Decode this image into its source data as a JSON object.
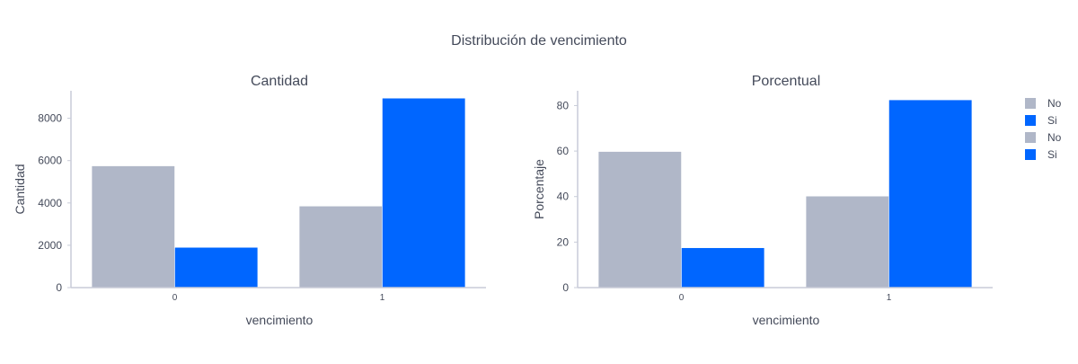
{
  "figure": {
    "title": "Distribución de vencimiento"
  },
  "legend": {
    "placement": "right",
    "entries": [
      {
        "label": "No",
        "color": "#b0b7c8"
      },
      {
        "label": "Si",
        "color": "#0066ff"
      },
      {
        "label": "No",
        "color": "#b0b7c8"
      },
      {
        "label": "Si",
        "color": "#0066ff"
      }
    ]
  },
  "chart_data": [
    {
      "type": "bar",
      "title": "Cantidad",
      "xlabel": "vencimiento",
      "ylabel": "Cantidad",
      "categories": [
        "0",
        "1"
      ],
      "ylim": [
        0,
        9300
      ],
      "yticks": [
        0,
        2000,
        4000,
        6000,
        8000
      ],
      "grid": false,
      "series": [
        {
          "name": "No",
          "color": "#b0b7c8",
          "values": [
            5750,
            3850
          ]
        },
        {
          "name": "Si",
          "color": "#0066ff",
          "values": [
            1900,
            8950
          ]
        }
      ]
    },
    {
      "type": "bar",
      "title": "Porcentual",
      "xlabel": "vencimiento",
      "ylabel": "Porcentaje",
      "categories": [
        "0",
        "1"
      ],
      "ylim": [
        0,
        86.5
      ],
      "yticks": [
        0,
        20,
        40,
        60,
        80
      ],
      "grid": false,
      "series": [
        {
          "name": "No",
          "color": "#b0b7c8",
          "values": [
            59.8,
            40.2
          ]
        },
        {
          "name": "Si",
          "color": "#0066ff",
          "values": [
            17.5,
            82.5
          ]
        }
      ]
    }
  ]
}
